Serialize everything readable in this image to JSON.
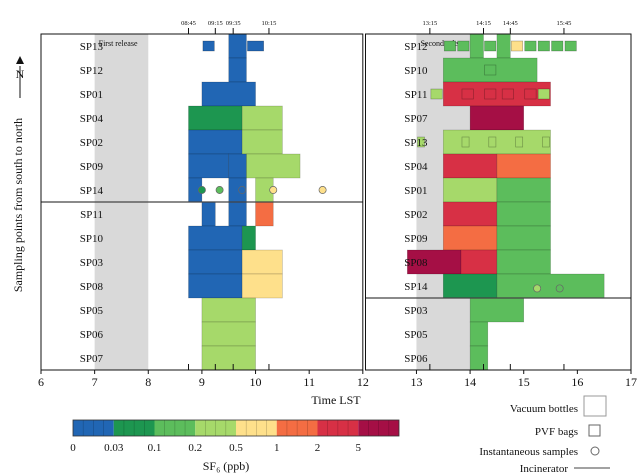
{
  "chart_data": {
    "type": "heatmap",
    "title": "",
    "xlabel": "Time LST",
    "ylabel": "Sampling points from south to north",
    "north_label": "N",
    "xlim": [
      6,
      17
    ],
    "xticks": [
      "6",
      "7",
      "8",
      "9",
      "10",
      "11",
      "12",
      "13",
      "14",
      "15",
      "16",
      "17"
    ],
    "colorbar": {
      "label": "SF₆ (ppb)",
      "tick_labels": [
        "0",
        "0.03",
        "0.1",
        "0.2",
        "0.5",
        "1",
        "2",
        "5"
      ],
      "colors": [
        "#2166b4",
        "#1d9650",
        "#5cbd5c",
        "#a6d96a",
        "#fee08b",
        "#f46d43",
        "#d73045",
        "#a50f45"
      ]
    },
    "legend": {
      "vacuum": "Vacuum bottles",
      "pvf": "PVF bags",
      "inst": "Instantaneous samples",
      "incin": "Incinerator"
    },
    "panels": [
      {
        "release_label": "First release",
        "release_window": [
          7,
          8
        ],
        "top_ticks": [
          {
            "t": 8.75,
            "label": "08:45"
          },
          {
            "t": 9.25,
            "label": "09:15"
          },
          {
            "t": 9.583,
            "label": "09:35"
          },
          {
            "t": 10.25,
            "label": "10:15"
          }
        ],
        "rows": [
          "SP13",
          "SP12",
          "SP01",
          "SP04",
          "SP02",
          "SP09",
          "SP14",
          "SP11",
          "SP10",
          "SP03",
          "SP08",
          "SP05",
          "SP06",
          "SP07"
        ],
        "incinerator_after_row": 6,
        "cells": [
          {
            "row": 0,
            "t0": 9.5,
            "t1": 9.83,
            "level": 0
          },
          {
            "row": 1,
            "t0": 9.5,
            "t1": 9.83,
            "level": 0
          },
          {
            "row": 2,
            "t0": 9.0,
            "t1": 10.0,
            "level": 0
          },
          {
            "row": 3,
            "t0": 8.75,
            "t1": 9.75,
            "level": 1
          },
          {
            "row": 3,
            "t0": 9.75,
            "t1": 10.5,
            "level": 3
          },
          {
            "row": 4,
            "t0": 8.75,
            "t1": 9.75,
            "level": 0
          },
          {
            "row": 4,
            "t0": 9.75,
            "t1": 10.5,
            "level": 3
          },
          {
            "row": 5,
            "t0": 8.75,
            "t1": 9.5,
            "level": 0
          },
          {
            "row": 5,
            "t0": 9.5,
            "t1": 9.83,
            "level": 0
          },
          {
            "row": 5,
            "t0": 9.83,
            "t1": 10.83,
            "level": 3
          },
          {
            "row": 6,
            "t0": 8.75,
            "t1": 9.0,
            "level": 0
          },
          {
            "row": 6,
            "t0": 9.5,
            "t1": 9.83,
            "level": 0
          },
          {
            "row": 6,
            "t0": 10.0,
            "t1": 10.33,
            "level": 3
          },
          {
            "row": 7,
            "t0": 9.0,
            "t1": 9.25,
            "level": 0
          },
          {
            "row": 7,
            "t0": 9.5,
            "t1": 9.83,
            "level": 0
          },
          {
            "row": 7,
            "t0": 10.0,
            "t1": 10.33,
            "level": 5
          },
          {
            "row": 8,
            "t0": 8.75,
            "t1": 9.75,
            "level": 0
          },
          {
            "row": 8,
            "t0": 9.75,
            "t1": 10.0,
            "level": 1
          },
          {
            "row": 9,
            "t0": 8.75,
            "t1": 9.75,
            "level": 0
          },
          {
            "row": 9,
            "t0": 9.75,
            "t1": 10.5,
            "level": 4
          },
          {
            "row": 10,
            "t0": 8.75,
            "t1": 9.75,
            "level": 0
          },
          {
            "row": 10,
            "t0": 9.75,
            "t1": 10.5,
            "level": 4
          },
          {
            "row": 11,
            "t0": 9.0,
            "t1": 10.0,
            "level": 3
          },
          {
            "row": 12,
            "t0": 9.0,
            "t1": 10.0,
            "level": 3
          },
          {
            "row": 13,
            "t0": 9.0,
            "t1": 10.0,
            "level": 3
          }
        ],
        "bags": [
          {
            "row": 0,
            "t0": 9.0,
            "t1": 9.25,
            "level": 0
          },
          {
            "row": 0,
            "t0": 9.83,
            "t1": 10.17,
            "level": 0
          }
        ],
        "instantaneous": [
          {
            "t": 9.0,
            "y": 6.5,
            "level": 1
          },
          {
            "t": 9.33,
            "y": 6.5,
            "level": 2
          },
          {
            "t": 9.75,
            "y": 6.5,
            "level": 0
          },
          {
            "t": 10.33,
            "y": 6.5,
            "level": 4
          },
          {
            "t": 11.25,
            "y": 6.5,
            "level": 4
          }
        ]
      },
      {
        "release_label": "Second release",
        "release_window": [
          13,
          14.25
        ],
        "top_ticks": [
          {
            "t": 13.25,
            "label": "13:15"
          },
          {
            "t": 14.25,
            "label": "14:15"
          },
          {
            "t": 14.75,
            "label": "14:45"
          },
          {
            "t": 15.75,
            "label": "15:45"
          }
        ],
        "rows": [
          "SP12",
          "SP10",
          "SP11",
          "SP07",
          "SP13",
          "SP04",
          "SP01",
          "SP02",
          "SP09",
          "SP08",
          "SP14",
          "SP03",
          "SP05",
          "SP06"
        ],
        "incinerator_after_row": 10,
        "cells": [
          {
            "row": 0,
            "t0": 14.0,
            "t1": 14.25,
            "level": 2
          },
          {
            "row": 0,
            "t0": 14.5,
            "t1": 14.75,
            "level": 2
          },
          {
            "row": 1,
            "t0": 13.5,
            "t1": 15.25,
            "level": 2
          },
          {
            "row": 2,
            "t0": 13.5,
            "t1": 15.5,
            "level": 6
          },
          {
            "row": 3,
            "t0": 14.0,
            "t1": 15.0,
            "level": 7
          },
          {
            "row": 4,
            "t0": 13.5,
            "t1": 15.5,
            "level": 3
          },
          {
            "row": 5,
            "t0": 13.5,
            "t1": 14.5,
            "level": 6
          },
          {
            "row": 5,
            "t0": 14.5,
            "t1": 15.5,
            "level": 5
          },
          {
            "row": 6,
            "t0": 13.5,
            "t1": 14.5,
            "level": 3
          },
          {
            "row": 6,
            "t0": 14.5,
            "t1": 15.5,
            "level": 2
          },
          {
            "row": 7,
            "t0": 13.5,
            "t1": 14.5,
            "level": 6
          },
          {
            "row": 7,
            "t0": 14.5,
            "t1": 15.5,
            "level": 2
          },
          {
            "row": 8,
            "t0": 13.5,
            "t1": 14.5,
            "level": 5
          },
          {
            "row": 8,
            "t0": 14.5,
            "t1": 15.5,
            "level": 2
          },
          {
            "row": 9,
            "t0": 12.83,
            "t1": 13.83,
            "level": 7
          },
          {
            "row": 9,
            "t0": 13.83,
            "t1": 14.5,
            "level": 6
          },
          {
            "row": 9,
            "t0": 14.5,
            "t1": 15.5,
            "level": 2
          },
          {
            "row": 10,
            "t0": 13.5,
            "t1": 14.5,
            "level": 1
          },
          {
            "row": 10,
            "t0": 14.5,
            "t1": 16.5,
            "level": 2
          },
          {
            "row": 11,
            "t0": 14.0,
            "t1": 15.0,
            "level": 2
          },
          {
            "row": 12,
            "t0": 14.0,
            "t1": 14.33,
            "level": 2
          },
          {
            "row": 13,
            "t0": 14.0,
            "t1": 14.33,
            "level": 2
          }
        ],
        "bags": [
          {
            "row": 0,
            "t0": 13.5,
            "t1": 13.75,
            "level": 2
          },
          {
            "row": 0,
            "t0": 13.75,
            "t1": 14.0,
            "level": 2
          },
          {
            "row": 0,
            "t0": 14.25,
            "t1": 14.5,
            "level": 2
          },
          {
            "row": 0,
            "t0": 14.75,
            "t1": 15.0,
            "level": 4
          },
          {
            "row": 0,
            "t0": 15.0,
            "t1": 15.25,
            "level": 2
          },
          {
            "row": 0,
            "t0": 15.25,
            "t1": 15.5,
            "level": 2
          },
          {
            "row": 0,
            "t0": 15.5,
            "t1": 15.75,
            "level": 2
          },
          {
            "row": 0,
            "t0": 15.75,
            "t1": 16.0,
            "level": 2
          },
          {
            "row": 1,
            "t0": 14.25,
            "t1": 14.5,
            "level": 2
          },
          {
            "row": 2,
            "t0": 13.25,
            "t1": 13.5,
            "level": 3
          },
          {
            "row": 2,
            "t0": 13.83,
            "t1": 14.08,
            "level": 6
          },
          {
            "row": 2,
            "t0": 14.25,
            "t1": 14.5,
            "level": 6
          },
          {
            "row": 2,
            "t0": 14.58,
            "t1": 14.83,
            "level": 6
          },
          {
            "row": 2,
            "t0": 15.0,
            "t1": 15.25,
            "level": 6
          },
          {
            "row": 2,
            "t0": 15.25,
            "t1": 15.5,
            "level": 3
          },
          {
            "row": 4,
            "t0": 13.0,
            "t1": 13.17,
            "level": 3
          },
          {
            "row": 4,
            "t0": 13.83,
            "t1": 14.0,
            "level": 3
          },
          {
            "row": 4,
            "t0": 14.33,
            "t1": 14.5,
            "level": 3
          },
          {
            "row": 4,
            "t0": 14.83,
            "t1": 15.0,
            "level": 3
          },
          {
            "row": 4,
            "t0": 15.33,
            "t1": 15.5,
            "level": 3
          }
        ],
        "instantaneous": [
          {
            "t": 15.25,
            "y": 10.6,
            "level": 3
          },
          {
            "t": 15.67,
            "y": 10.6,
            "level": 2
          }
        ]
      }
    ]
  }
}
